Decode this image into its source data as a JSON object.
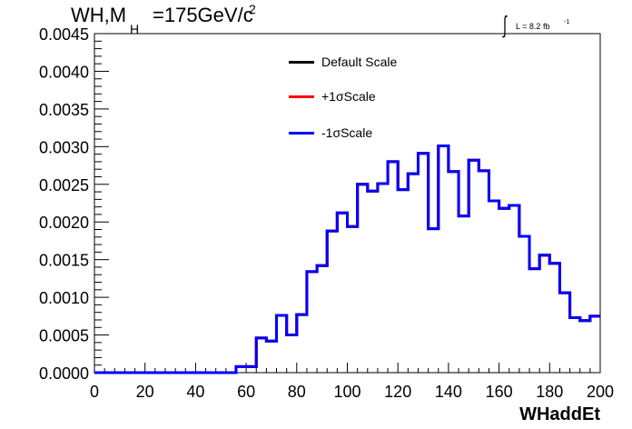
{
  "title": {
    "main": "WH,M",
    "subscript": "H",
    "tail": "=175GeV/c",
    "superscript": "2"
  },
  "luminosity": {
    "integral_symbol": "∫",
    "text": "L = 8.2 fb",
    "superscript": "-1"
  },
  "legend": [
    {
      "label": "Default Scale",
      "color": "#000000"
    },
    {
      "label": "+1σScale",
      "color": "#ff0000"
    },
    {
      "label": "-1σScale",
      "color": "#0000ff"
    }
  ],
  "chart_data": {
    "type": "line",
    "step": true,
    "xlabel": "WHaddEt",
    "ylabel": "",
    "xlim": [
      0,
      200
    ],
    "ylim": [
      0,
      0.0045
    ],
    "xticks": [
      "0",
      "20",
      "40",
      "60",
      "80",
      "100",
      "120",
      "140",
      "160",
      "180",
      "200"
    ],
    "yticks": [
      "0.0000",
      "0.0005",
      "0.0010",
      "0.0015",
      "0.0020",
      "0.0025",
      "0.0030",
      "0.0035",
      "0.0040",
      "0.0045"
    ],
    "bin_edges": [
      0,
      4,
      8,
      12,
      16,
      20,
      24,
      28,
      32,
      36,
      40,
      44,
      48,
      52,
      56,
      60,
      64,
      68,
      72,
      76,
      80,
      84,
      88,
      92,
      96,
      100,
      104,
      108,
      112,
      116,
      120,
      124,
      128,
      132,
      136,
      140,
      144,
      148,
      152,
      156,
      160,
      164,
      168,
      172,
      176,
      180,
      184,
      188,
      192,
      196,
      200
    ],
    "series": [
      {
        "name": "Default Scale",
        "color": "#000000",
        "values": [
          0,
          0,
          0,
          0,
          0,
          0,
          0,
          0,
          0,
          0,
          0,
          0,
          0,
          0,
          8e-05,
          8e-05,
          0.00046,
          0.00042,
          0.00076,
          0.0005,
          0.00077,
          0.00134,
          0.00142,
          0.00188,
          0.00212,
          0.00194,
          0.0025,
          0.00241,
          0.00251,
          0.0028,
          0.00243,
          0.00264,
          0.00291,
          0.00191,
          0.00301,
          0.00267,
          0.00208,
          0.00282,
          0.00268,
          0.00228,
          0.00218,
          0.00222,
          0.00181,
          0.00138,
          0.00156,
          0.00145,
          0.00106,
          0.00073,
          0.00069,
          0.00075
        ]
      },
      {
        "name": "+1σScale",
        "color": "#ff0000",
        "values": [
          0,
          0,
          0,
          0,
          0,
          0,
          0,
          0,
          0,
          0,
          0,
          0,
          0,
          0,
          8e-05,
          8e-05,
          0.00046,
          0.00042,
          0.00076,
          0.0005,
          0.00077,
          0.00134,
          0.00142,
          0.00188,
          0.00212,
          0.00194,
          0.0025,
          0.00241,
          0.00251,
          0.0028,
          0.00243,
          0.00264,
          0.00291,
          0.00191,
          0.00301,
          0.00267,
          0.00208,
          0.00282,
          0.00268,
          0.00228,
          0.00218,
          0.00222,
          0.00181,
          0.00138,
          0.00156,
          0.00145,
          0.00106,
          0.00073,
          0.00069,
          0.00075
        ]
      },
      {
        "name": "-1σScale",
        "color": "#0000ff",
        "values": [
          0,
          0,
          0,
          0,
          0,
          0,
          0,
          0,
          0,
          0,
          0,
          0,
          0,
          0,
          8e-05,
          8e-05,
          0.00046,
          0.00042,
          0.00076,
          0.0005,
          0.00077,
          0.00134,
          0.00142,
          0.00188,
          0.00212,
          0.00194,
          0.0025,
          0.00241,
          0.00251,
          0.0028,
          0.00243,
          0.00264,
          0.00291,
          0.00191,
          0.00301,
          0.00267,
          0.00208,
          0.00282,
          0.00268,
          0.00228,
          0.00218,
          0.00222,
          0.00181,
          0.00138,
          0.00156,
          0.00145,
          0.00106,
          0.00073,
          0.00069,
          0.00075
        ]
      }
    ]
  }
}
